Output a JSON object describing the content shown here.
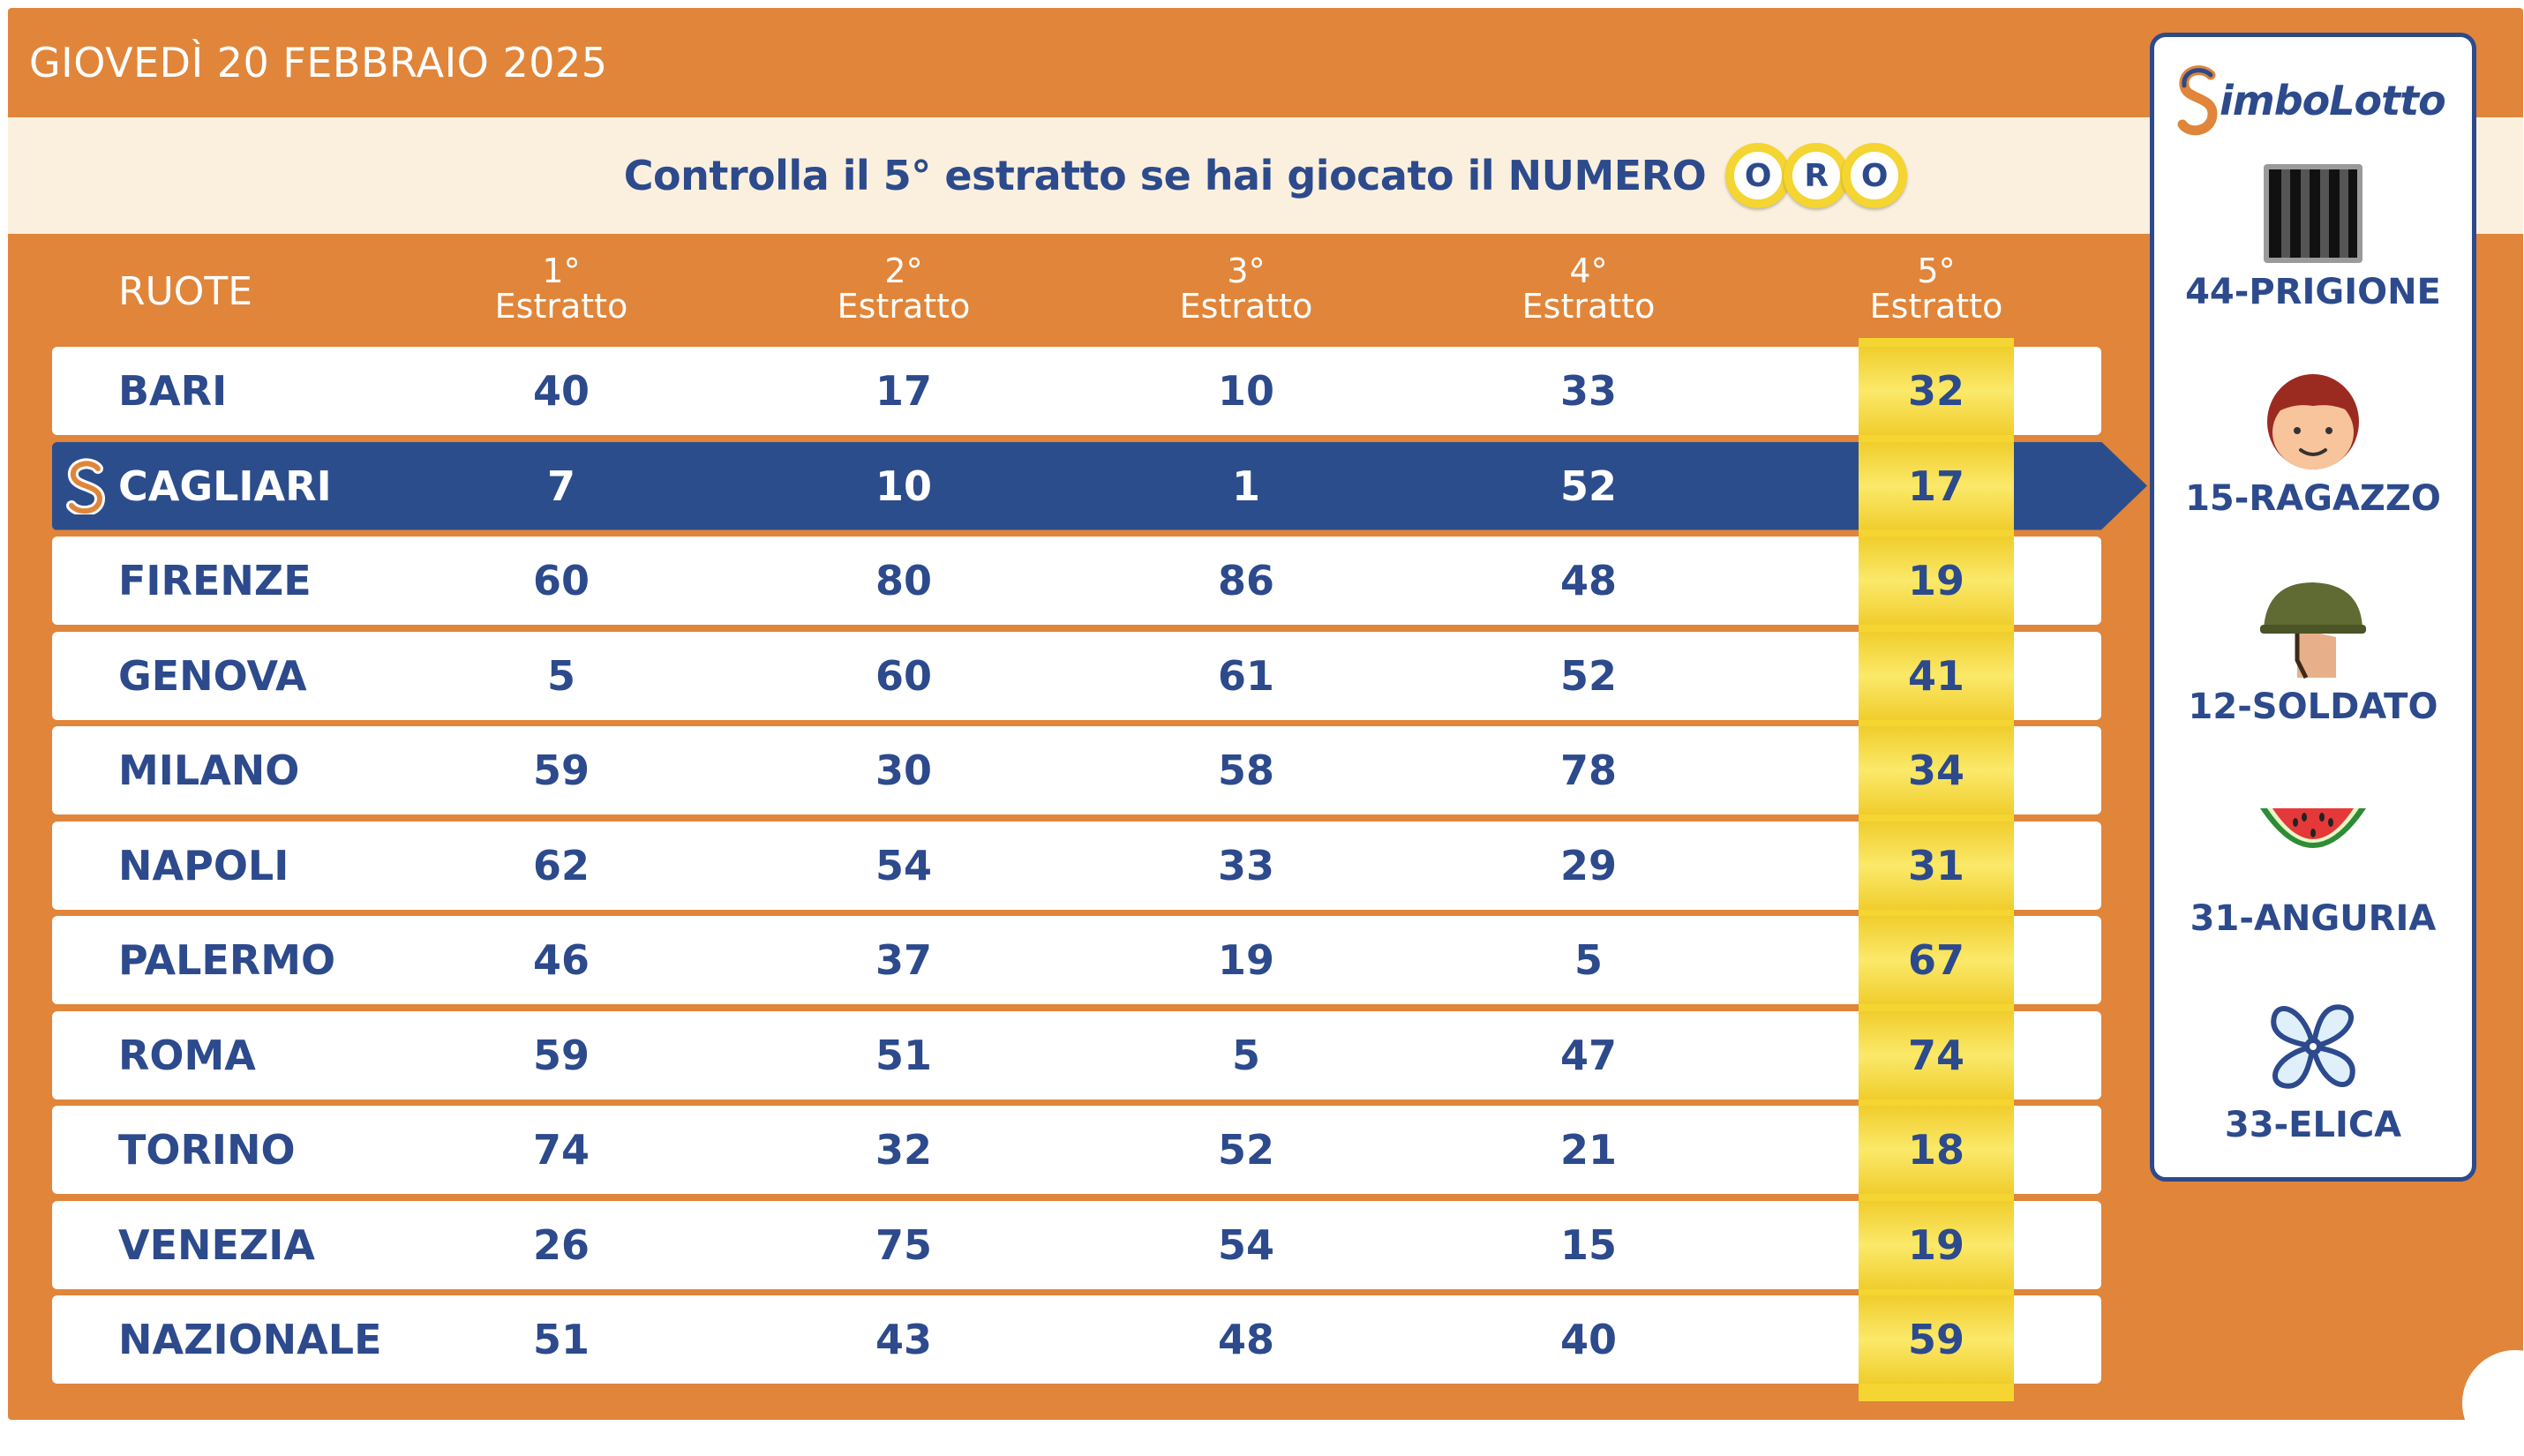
{
  "header": {
    "date": "GIOVEDÌ 20 FEBBRAIO 2025"
  },
  "banner": {
    "text": "Controlla il 5° estratto se hai giocato il NUMERO",
    "oro_letters": [
      "O",
      "R",
      "O"
    ]
  },
  "table": {
    "headers": {
      "ruote": "RUOTE",
      "cols": [
        {
          "sup": "1°",
          "label": "Estratto"
        },
        {
          "sup": "2°",
          "label": "Estratto"
        },
        {
          "sup": "3°",
          "label": "Estratto"
        },
        {
          "sup": "4°",
          "label": "Estratto"
        },
        {
          "sup": "5°",
          "label": "Estratto"
        }
      ]
    },
    "rows": [
      {
        "wheel": "BARI",
        "nums": [
          "40",
          "17",
          "10",
          "33",
          "32"
        ]
      },
      {
        "wheel": "CAGLIARI",
        "nums": [
          "7",
          "10",
          "1",
          "52",
          "17"
        ],
        "highlight": true
      },
      {
        "wheel": "FIRENZE",
        "nums": [
          "60",
          "80",
          "86",
          "48",
          "19"
        ]
      },
      {
        "wheel": "GENOVA",
        "nums": [
          "5",
          "60",
          "61",
          "52",
          "41"
        ]
      },
      {
        "wheel": "MILANO",
        "nums": [
          "59",
          "30",
          "58",
          "78",
          "34"
        ]
      },
      {
        "wheel": "NAPOLI",
        "nums": [
          "62",
          "54",
          "33",
          "29",
          "31"
        ]
      },
      {
        "wheel": "PALERMO",
        "nums": [
          "46",
          "37",
          "19",
          "5",
          "67"
        ]
      },
      {
        "wheel": "ROMA",
        "nums": [
          "59",
          "51",
          "5",
          "47",
          "74"
        ]
      },
      {
        "wheel": "TORINO",
        "nums": [
          "74",
          "32",
          "52",
          "21",
          "18"
        ]
      },
      {
        "wheel": "VENEZIA",
        "nums": [
          "26",
          "75",
          "54",
          "15",
          "19"
        ]
      },
      {
        "wheel": "NAZIONALE",
        "nums": [
          "51",
          "43",
          "48",
          "40",
          "59"
        ]
      }
    ]
  },
  "simbolotto": {
    "logo": "imboLotto",
    "symbols": [
      {
        "label": "44-PRIGIONE",
        "icon": "prison-bars-icon"
      },
      {
        "label": "15-RAGAZZO",
        "icon": "boy-face-icon"
      },
      {
        "label": "12-SOLDATO",
        "icon": "soldier-helmet-icon"
      },
      {
        "label": "31-ANGURIA",
        "icon": "watermelon-icon"
      },
      {
        "label": "33-ELICA",
        "icon": "propeller-icon"
      }
    ]
  },
  "colors": {
    "orange": "#e0853a",
    "navy": "#2c4a8c",
    "gold": "#f4d531",
    "cream": "#fbf0de"
  }
}
